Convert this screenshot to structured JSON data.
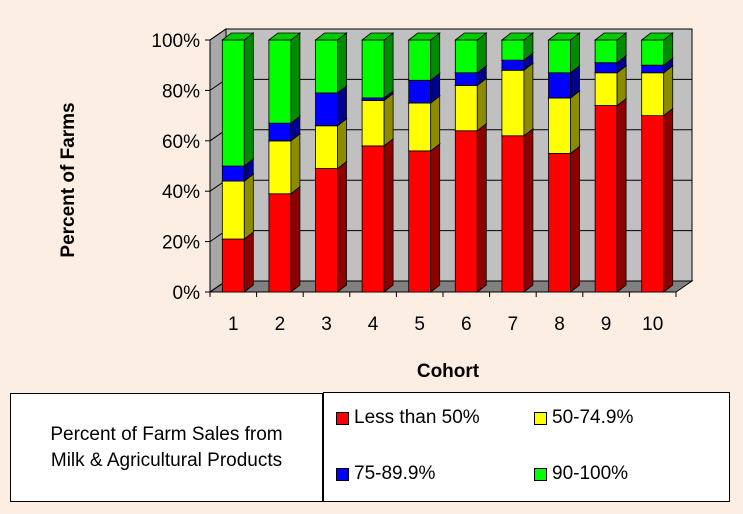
{
  "chart_data": {
    "type": "bar",
    "stacked": true,
    "percent": true,
    "three_d": true,
    "categories": [
      "1",
      "2",
      "3",
      "4",
      "5",
      "6",
      "7",
      "8",
      "9",
      "10"
    ],
    "series": [
      {
        "name": "Less than 50%",
        "color": "#ff0000",
        "values": [
          21,
          39,
          49,
          58,
          56,
          64,
          62,
          55,
          74,
          70
        ]
      },
      {
        "name": "50-74.9%",
        "color": "#ffff00",
        "values": [
          23,
          21,
          17,
          18,
          19,
          18,
          26,
          22,
          13,
          17
        ]
      },
      {
        "name": "75-89.9%",
        "color": "#0000ff",
        "values": [
          6,
          7,
          13,
          1,
          9,
          5,
          4,
          10,
          4,
          3
        ]
      },
      {
        "name": "90-100%",
        "color": "#00ff00",
        "values": [
          50,
          33,
          21,
          23,
          16,
          13,
          8,
          13,
          9,
          10
        ]
      }
    ],
    "xlabel": "Cohort",
    "ylabel": "Percent of Farms",
    "ylim": [
      0,
      100
    ],
    "yticks": [
      "0%",
      "20%",
      "40%",
      "60%",
      "80%",
      "100%"
    ],
    "legend_title": "Percent of Farm Sales from Milk & Agricultural Products",
    "legend_position": "bottom-right",
    "grid": true
  }
}
